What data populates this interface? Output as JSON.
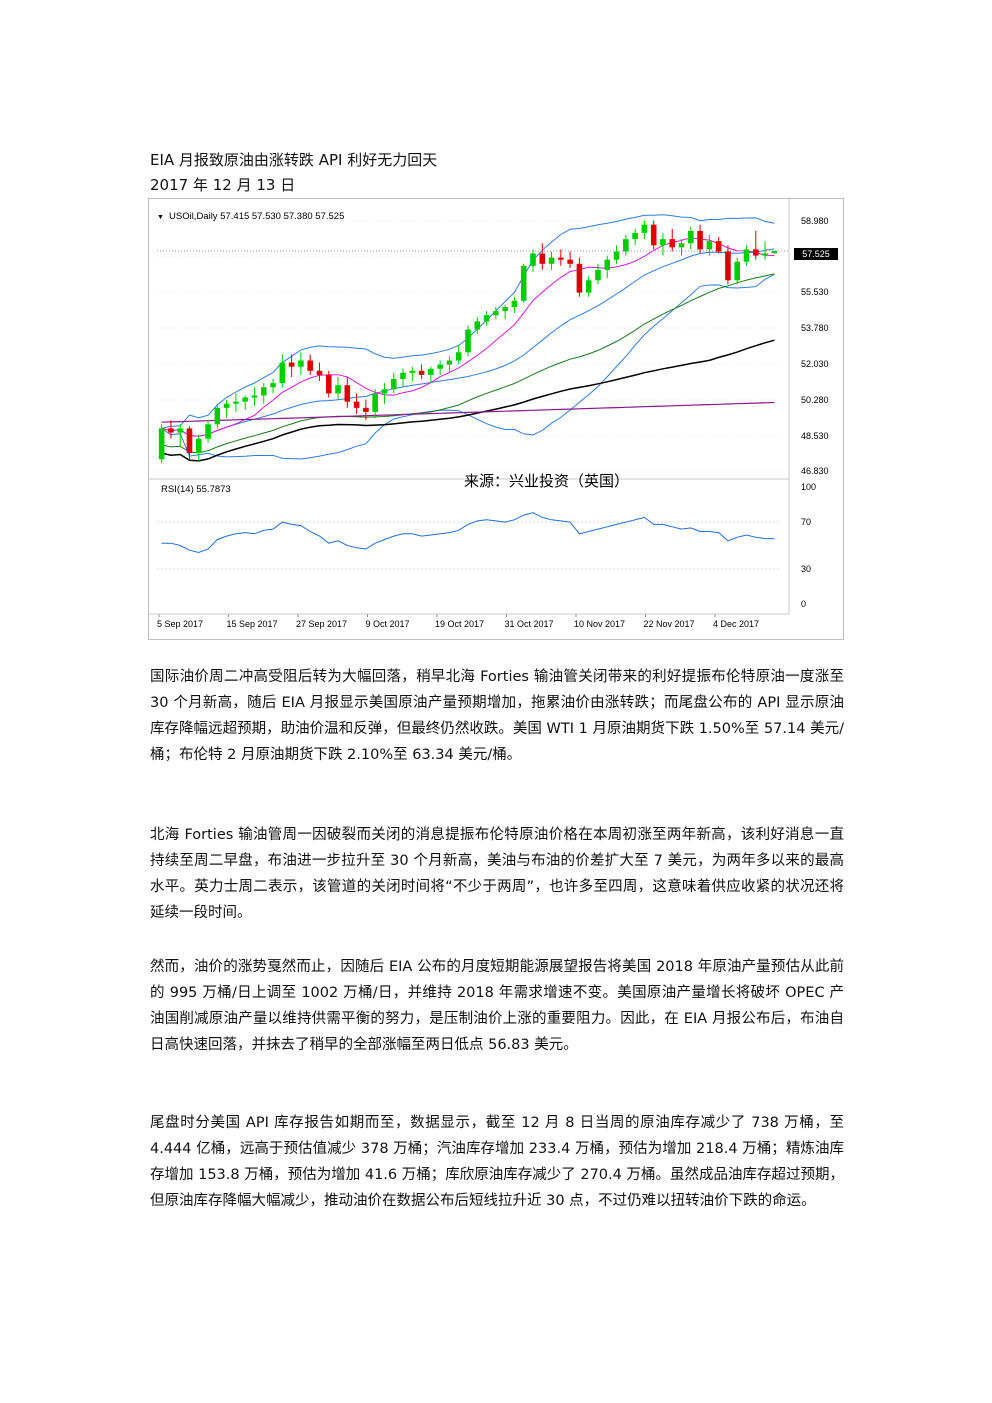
{
  "header": {
    "title": "EIA 月报致原油由涨转跌  API 利好无力回天",
    "date": "2017 年 12 月 13 日"
  },
  "chart": {
    "symbol_line": "USOil,Daily  57.415 57.530 57.380 57.525",
    "price_badge": "57.525",
    "source_note": "来源：兴业投资（英国）",
    "rsi_label": "RSI(14) 55.7873",
    "price_ticks": [
      "58.980",
      "57.250",
      "55.530",
      "53.780",
      "52.030",
      "50.280",
      "48.530",
      "46.830"
    ],
    "rsi_ticks": [
      "100",
      "70",
      "30",
      "0"
    ],
    "date_ticks": [
      "5 Sep 2017",
      "15 Sep 2017",
      "27 Sep 2017",
      "9 Oct 2017",
      "19 Oct 2017",
      "31 Oct 2017",
      "10 Nov 2017",
      "22 Nov 2017",
      "4 Dec 2017"
    ],
    "colors": {
      "up": "#00cc00",
      "down": "#e00000",
      "rsi": "#1f6fd6",
      "bollinger": "#2f7ee0",
      "ma_fast": "#d81ad8",
      "ma_mid": "#1a7a1a",
      "ma_slow": "#000000",
      "ma_long": "#8a1a8a"
    }
  },
  "chart_data": {
    "type": "candlestick",
    "title": "USOil,Daily",
    "ylim": [
      46.83,
      58.98
    ],
    "rsi_ylim": [
      0,
      100
    ],
    "ohlc_approx": [
      [
        47.4,
        49.1,
        47.2,
        48.9
      ],
      [
        48.9,
        49.3,
        48.4,
        48.7
      ],
      [
        48.7,
        49.1,
        48.0,
        48.9
      ],
      [
        48.9,
        49.0,
        47.4,
        47.7
      ],
      [
        47.7,
        48.6,
        47.3,
        48.4
      ],
      [
        48.4,
        49.3,
        48.2,
        49.1
      ],
      [
        49.1,
        50.1,
        48.9,
        49.9
      ],
      [
        49.9,
        50.3,
        49.4,
        50.1
      ],
      [
        50.1,
        50.6,
        49.7,
        50.2
      ],
      [
        50.2,
        50.5,
        49.8,
        50.4
      ],
      [
        50.4,
        50.9,
        50.0,
        50.5
      ],
      [
        50.5,
        51.1,
        50.1,
        50.9
      ],
      [
        50.9,
        51.3,
        50.6,
        51.1
      ],
      [
        51.1,
        52.5,
        50.9,
        52.1
      ],
      [
        52.1,
        52.5,
        51.4,
        51.9
      ],
      [
        51.9,
        52.6,
        51.5,
        52.2
      ],
      [
        52.2,
        52.5,
        51.5,
        51.7
      ],
      [
        51.7,
        52.1,
        51.2,
        51.5
      ],
      [
        51.5,
        51.7,
        50.4,
        50.6
      ],
      [
        50.6,
        51.4,
        50.3,
        51.0
      ],
      [
        51.0,
        51.4,
        49.9,
        50.2
      ],
      [
        50.2,
        50.6,
        49.6,
        49.9
      ],
      [
        49.9,
        50.3,
        49.3,
        49.7
      ],
      [
        49.7,
        50.8,
        49.4,
        50.6
      ],
      [
        50.6,
        51.1,
        50.1,
        50.8
      ],
      [
        50.8,
        51.6,
        50.6,
        51.3
      ],
      [
        51.3,
        51.8,
        50.9,
        51.6
      ],
      [
        51.6,
        51.9,
        51.2,
        51.7
      ],
      [
        51.7,
        52.0,
        51.3,
        51.5
      ],
      [
        51.5,
        51.9,
        51.1,
        51.8
      ],
      [
        51.8,
        52.2,
        51.5,
        52.0
      ],
      [
        52.0,
        52.4,
        51.6,
        52.2
      ],
      [
        52.2,
        52.9,
        52.0,
        52.6
      ],
      [
        52.6,
        53.9,
        52.4,
        53.7
      ],
      [
        53.7,
        54.3,
        53.5,
        54.1
      ],
      [
        54.1,
        54.6,
        53.9,
        54.4
      ],
      [
        54.4,
        54.8,
        54.2,
        54.6
      ],
      [
        54.6,
        54.9,
        54.2,
        54.8
      ],
      [
        54.8,
        55.3,
        54.5,
        55.1
      ],
      [
        55.1,
        56.9,
        55.0,
        56.8
      ],
      [
        56.8,
        57.6,
        56.5,
        57.4
      ],
      [
        57.4,
        57.9,
        56.6,
        56.9
      ],
      [
        56.9,
        57.5,
        56.6,
        57.2
      ],
      [
        57.2,
        57.6,
        56.8,
        57.1
      ],
      [
        57.1,
        57.5,
        56.7,
        56.9
      ],
      [
        56.9,
        57.2,
        55.3,
        55.5
      ],
      [
        55.5,
        56.3,
        55.3,
        56.1
      ],
      [
        56.1,
        56.9,
        55.9,
        56.6
      ],
      [
        56.6,
        57.3,
        56.2,
        57.1
      ],
      [
        57.1,
        57.8,
        56.9,
        57.5
      ],
      [
        57.5,
        58.3,
        57.3,
        58.1
      ],
      [
        58.1,
        58.6,
        57.8,
        58.4
      ],
      [
        58.4,
        59.0,
        58.1,
        58.8
      ],
      [
        58.8,
        59.0,
        57.6,
        57.8
      ],
      [
        57.8,
        58.4,
        57.3,
        58.1
      ],
      [
        58.1,
        58.6,
        57.5,
        57.7
      ],
      [
        57.7,
        58.1,
        57.3,
        57.9
      ],
      [
        57.9,
        58.7,
        57.6,
        58.5
      ],
      [
        58.5,
        58.8,
        57.4,
        57.6
      ],
      [
        57.6,
        58.3,
        57.3,
        58.0
      ],
      [
        58.0,
        58.2,
        57.4,
        57.5
      ],
      [
        57.5,
        57.8,
        55.9,
        56.1
      ],
      [
        56.1,
        57.2,
        55.9,
        57.0
      ],
      [
        57.0,
        57.8,
        56.8,
        57.6
      ],
      [
        57.6,
        58.5,
        57.1,
        57.3
      ],
      [
        57.3,
        58.0,
        57.1,
        57.4
      ],
      [
        57.415,
        57.53,
        57.38,
        57.525
      ]
    ],
    "rsi_approx": [
      52,
      52,
      50,
      46,
      44,
      47,
      55,
      58,
      60,
      61,
      60,
      63,
      64,
      70,
      68,
      67,
      62,
      58,
      52,
      54,
      50,
      48,
      47,
      52,
      55,
      58,
      60,
      60,
      58,
      59,
      60,
      61,
      63,
      68,
      71,
      72,
      71,
      70,
      72,
      76,
      78,
      74,
      72,
      71,
      70,
      60,
      62,
      64,
      66,
      68,
      70,
      72,
      74,
      68,
      68,
      66,
      64,
      65,
      62,
      62,
      61,
      54,
      57,
      59,
      57,
      56,
      55.7873
    ]
  }
}
